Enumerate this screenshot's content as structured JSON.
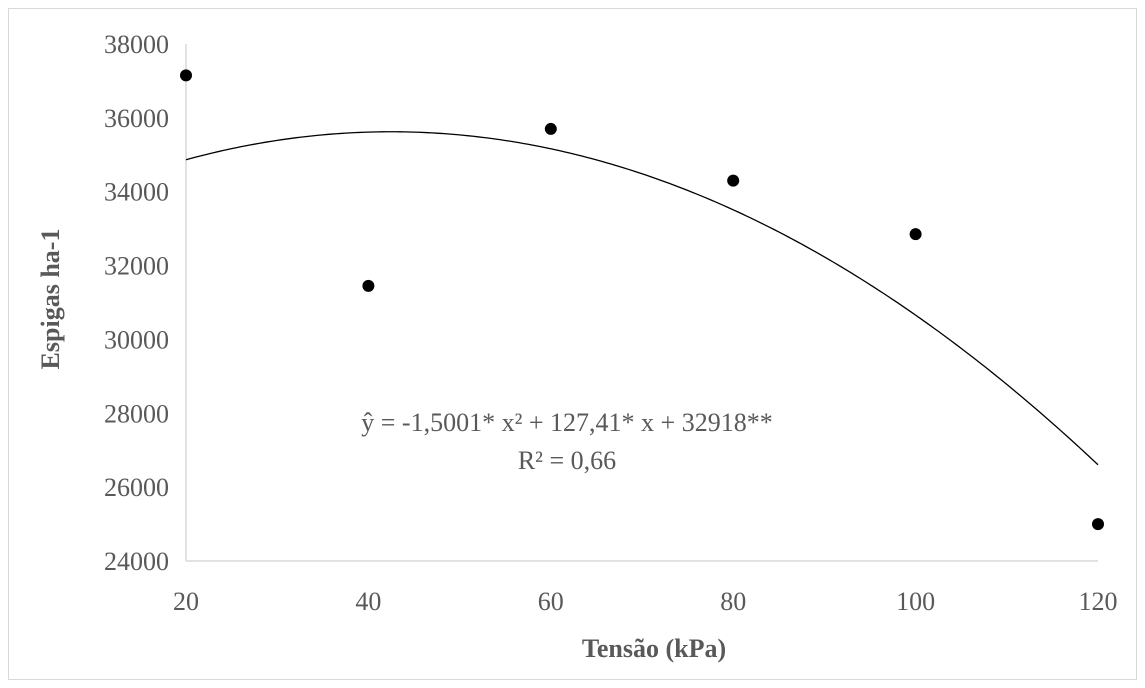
{
  "chart_data": {
    "type": "scatter",
    "xlabel": "Tensão (kPa)",
    "ylabel": "Espigas ha-1",
    "xlim": [
      20,
      120
    ],
    "ylim": [
      24000,
      38000
    ],
    "x_ticks": [
      "20",
      "40",
      "60",
      "80",
      "100",
      "120"
    ],
    "y_ticks": [
      "24000",
      "26000",
      "28000",
      "30000",
      "32000",
      "34000",
      "36000",
      "38000"
    ],
    "points": [
      {
        "x": 20,
        "y": 37150
      },
      {
        "x": 40,
        "y": 31450
      },
      {
        "x": 60,
        "y": 35700
      },
      {
        "x": 80,
        "y": 34300
      },
      {
        "x": 100,
        "y": 32850
      },
      {
        "x": 120,
        "y": 25000
      }
    ],
    "trendline": {
      "type": "polynomial",
      "coefficients": {
        "a": -1.5001,
        "b": 127.41,
        "c": 32918
      }
    },
    "annotations": {
      "equation": "ŷ = -1,5001*  x² + 127,41*  x + 32918**",
      "r2": "R² = 0,66"
    },
    "grid": false,
    "legend": "none",
    "colors": {
      "points": "#000000",
      "trend": "#000000",
      "axis": "#d9d9d9",
      "text": "#595959"
    }
  }
}
